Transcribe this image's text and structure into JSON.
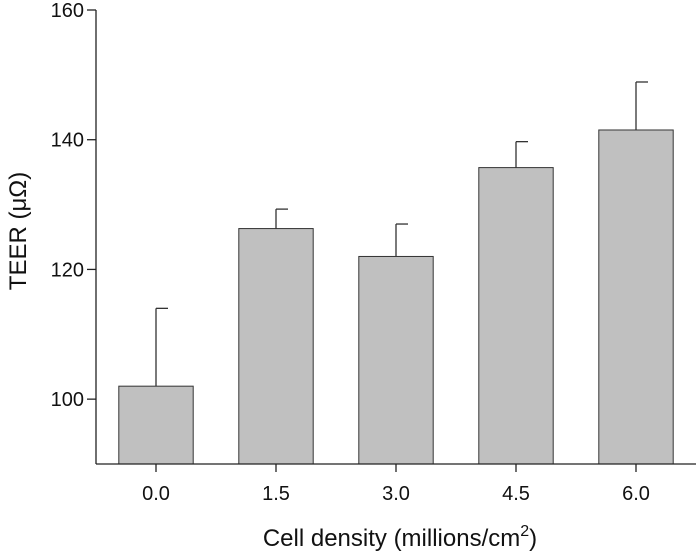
{
  "chart_data": {
    "type": "bar",
    "title": "",
    "xlabel_main": "Cell density (millions/cm",
    "xlabel_sup": "2",
    "xlabel_end": ")",
    "ylabel": "TEER (μΩ)",
    "categories": [
      "0.0",
      "1.5",
      "3.0",
      "4.5",
      "6.0"
    ],
    "values": [
      102,
      126.3,
      122,
      135.7,
      141.5
    ],
    "errors": [
      12,
      3,
      5,
      4,
      7.4
    ],
    "ylim": [
      90,
      160
    ],
    "yticks": [
      "100",
      "120",
      "140",
      "160"
    ],
    "bar_color": "#c0c0c0",
    "grid": false
  }
}
